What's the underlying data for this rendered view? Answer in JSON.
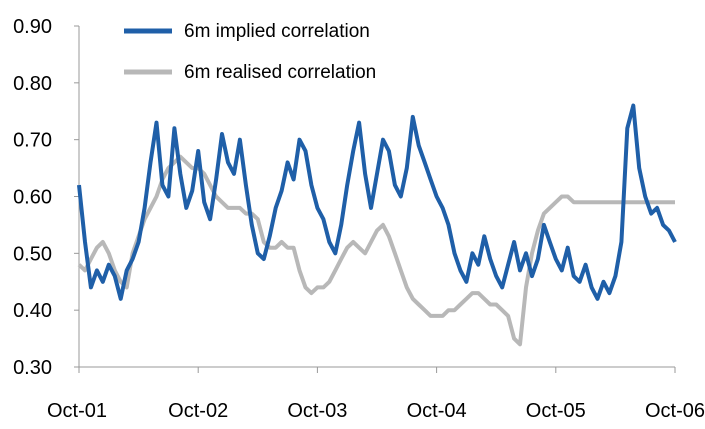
{
  "chart_data": {
    "type": "line",
    "title": "",
    "xlabel": "",
    "ylabel": "",
    "x_ticks": [
      "Oct-01",
      "Oct-02",
      "Oct-03",
      "Oct-04",
      "Oct-05",
      "Oct-06"
    ],
    "y_ticks": [
      "0.30",
      "0.40",
      "0.50",
      "0.60",
      "0.70",
      "0.80",
      "0.90"
    ],
    "ylim": [
      0.3,
      0.9
    ],
    "xlim": [
      "Oct-01",
      "Oct-06"
    ],
    "grid": false,
    "legend_position": "top-left",
    "series": [
      {
        "name": "6m implied correlation",
        "color": "#1f5fa8",
        "x": [
          0,
          0.05,
          0.1,
          0.15,
          0.2,
          0.25,
          0.3,
          0.35,
          0.4,
          0.45,
          0.5,
          0.55,
          0.6,
          0.65,
          0.7,
          0.75,
          0.8,
          0.85,
          0.9,
          0.95,
          1.0,
          1.05,
          1.1,
          1.15,
          1.2,
          1.25,
          1.3,
          1.35,
          1.4,
          1.45,
          1.5,
          1.55,
          1.6,
          1.65,
          1.7,
          1.75,
          1.8,
          1.85,
          1.9,
          1.95,
          2.0,
          2.05,
          2.1,
          2.15,
          2.2,
          2.25,
          2.3,
          2.35,
          2.4,
          2.45,
          2.5,
          2.55,
          2.6,
          2.65,
          2.7,
          2.75,
          2.8,
          2.85,
          2.9,
          2.95,
          3.0,
          3.05,
          3.1,
          3.15,
          3.2,
          3.25,
          3.3,
          3.35,
          3.4,
          3.45,
          3.5,
          3.55,
          3.6,
          3.65,
          3.7,
          3.75,
          3.8,
          3.85,
          3.9,
          3.95,
          4.0,
          4.05,
          4.1,
          4.15,
          4.2,
          4.25,
          4.3,
          4.35,
          4.4,
          4.45,
          4.5,
          4.55,
          4.6,
          4.65,
          4.7,
          4.75,
          4.8,
          4.85,
          4.9,
          4.95,
          5.0
        ],
        "values": [
          0.62,
          0.52,
          0.44,
          0.47,
          0.45,
          0.48,
          0.46,
          0.42,
          0.47,
          0.49,
          0.52,
          0.58,
          0.66,
          0.73,
          0.62,
          0.6,
          0.72,
          0.64,
          0.58,
          0.61,
          0.68,
          0.59,
          0.56,
          0.63,
          0.71,
          0.66,
          0.64,
          0.7,
          0.62,
          0.55,
          0.5,
          0.49,
          0.53,
          0.58,
          0.61,
          0.66,
          0.63,
          0.7,
          0.68,
          0.62,
          0.58,
          0.56,
          0.52,
          0.5,
          0.55,
          0.62,
          0.68,
          0.73,
          0.64,
          0.58,
          0.64,
          0.7,
          0.68,
          0.62,
          0.6,
          0.65,
          0.74,
          0.69,
          0.66,
          0.63,
          0.6,
          0.58,
          0.55,
          0.5,
          0.47,
          0.45,
          0.5,
          0.48,
          0.53,
          0.49,
          0.46,
          0.44,
          0.48,
          0.52,
          0.47,
          0.5,
          0.46,
          0.49,
          0.55,
          0.52,
          0.49,
          0.47,
          0.51,
          0.46,
          0.45,
          0.48,
          0.44,
          0.42,
          0.45,
          0.43,
          0.46,
          0.52,
          0.72,
          0.76,
          0.65,
          0.6,
          0.57,
          0.58,
          0.55,
          0.54,
          0.52
        ]
      },
      {
        "name": "6m realised correlation",
        "color": "#b8b8b8",
        "x": [
          0,
          0.05,
          0.1,
          0.15,
          0.2,
          0.25,
          0.3,
          0.35,
          0.4,
          0.45,
          0.5,
          0.55,
          0.6,
          0.65,
          0.7,
          0.75,
          0.8,
          0.85,
          0.9,
          0.95,
          1.0,
          1.05,
          1.1,
          1.15,
          1.2,
          1.25,
          1.3,
          1.35,
          1.4,
          1.45,
          1.5,
          1.55,
          1.6,
          1.65,
          1.7,
          1.75,
          1.8,
          1.85,
          1.9,
          1.95,
          2.0,
          2.05,
          2.1,
          2.15,
          2.2,
          2.25,
          2.3,
          2.35,
          2.4,
          2.45,
          2.5,
          2.55,
          2.6,
          2.65,
          2.7,
          2.75,
          2.8,
          2.85,
          2.9,
          2.95,
          3.0,
          3.05,
          3.1,
          3.15,
          3.2,
          3.25,
          3.3,
          3.35,
          3.4,
          3.45,
          3.5,
          3.55,
          3.6,
          3.65,
          3.7,
          3.75,
          3.8,
          3.85,
          3.9,
          3.95,
          4.0,
          4.05,
          4.1,
          4.15,
          4.2,
          4.25,
          4.3,
          4.35,
          4.4,
          4.45,
          4.5,
          4.55,
          4.6,
          4.65,
          4.7,
          4.75,
          4.8,
          4.85,
          4.9,
          4.95,
          5.0
        ],
        "values": [
          0.48,
          0.47,
          0.49,
          0.51,
          0.52,
          0.5,
          0.47,
          0.45,
          0.44,
          0.5,
          0.53,
          0.56,
          0.58,
          0.6,
          0.63,
          0.65,
          0.66,
          0.67,
          0.66,
          0.65,
          0.65,
          0.64,
          0.62,
          0.6,
          0.59,
          0.58,
          0.58,
          0.58,
          0.57,
          0.57,
          0.56,
          0.52,
          0.51,
          0.51,
          0.52,
          0.51,
          0.51,
          0.47,
          0.44,
          0.43,
          0.44,
          0.44,
          0.45,
          0.47,
          0.49,
          0.51,
          0.52,
          0.51,
          0.5,
          0.52,
          0.54,
          0.55,
          0.53,
          0.5,
          0.47,
          0.44,
          0.42,
          0.41,
          0.4,
          0.39,
          0.39,
          0.39,
          0.4,
          0.4,
          0.41,
          0.42,
          0.43,
          0.43,
          0.42,
          0.41,
          0.41,
          0.4,
          0.39,
          0.35,
          0.34,
          0.44,
          0.5,
          0.54,
          0.57,
          0.58,
          0.59,
          0.6,
          0.6,
          0.59,
          0.59,
          0.59,
          0.59,
          0.59,
          0.59,
          0.59,
          0.59,
          0.59,
          0.59,
          0.59,
          0.59,
          0.59,
          0.59,
          0.59,
          0.59,
          0.59,
          0.59
        ]
      }
    ]
  }
}
